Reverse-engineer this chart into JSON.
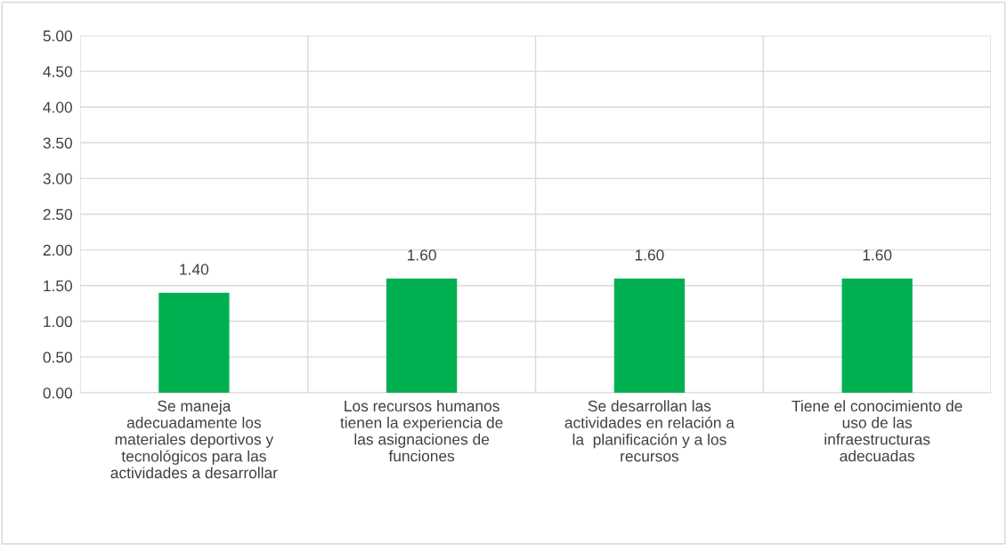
{
  "chart_data": {
    "type": "bar",
    "categories": [
      "Se maneja\nadecuadamente los\nmateriales deportivos y\ntecnológicos para las\nactividades a desarrollar",
      "Los recursos humanos\ntienen la experiencia de\nlas asignaciones de\nfunciones",
      "Se desarrollan las\nactividades en relación a\nla  planificación y a los\nrecursos",
      "Tiene el conocimiento de\nuso de las\ninfraestructuras\nadecuadas"
    ],
    "values": [
      1.4,
      1.6,
      1.6,
      1.6
    ],
    "value_labels": [
      "1.40",
      "1.60",
      "1.60",
      "1.60"
    ],
    "color": "#00b050",
    "ylim": [
      0,
      5
    ],
    "yticks": [
      {
        "value": 0,
        "label": "0.00"
      },
      {
        "value": 0.5,
        "label": "0.50"
      },
      {
        "value": 1,
        "label": "1.00"
      },
      {
        "value": 1.5,
        "label": "1.50"
      },
      {
        "value": 2,
        "label": "2.00"
      },
      {
        "value": 2.5,
        "label": "2.50"
      },
      {
        "value": 3,
        "label": "3.00"
      },
      {
        "value": 3.5,
        "label": "3.50"
      },
      {
        "value": 4,
        "label": "4.00"
      },
      {
        "value": 4.5,
        "label": "4.50"
      },
      {
        "value": 5,
        "label": "5.00"
      }
    ],
    "grid": true,
    "legend": false
  }
}
